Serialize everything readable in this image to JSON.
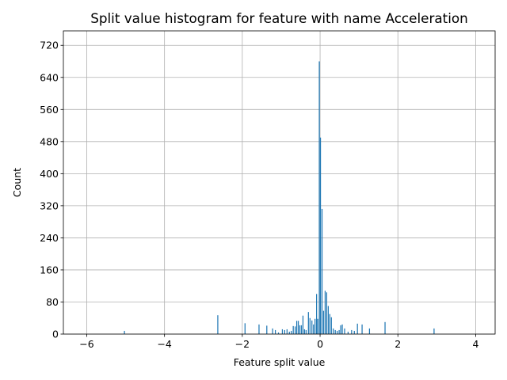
{
  "chart_data": {
    "type": "bar",
    "title": "Split value histogram for feature with name Acceleration",
    "xlabel": "Feature split value",
    "ylabel": "Count",
    "xlim": [
      -6.6,
      4.5
    ],
    "ylim": [
      0,
      756
    ],
    "xticks": [
      -6,
      -4,
      -2,
      0,
      2,
      4
    ],
    "xtick_labels": [
      "−6",
      "−4",
      "−2",
      "0",
      "2",
      "4"
    ],
    "yticks": [
      0,
      80,
      160,
      240,
      320,
      400,
      480,
      560,
      640,
      720
    ],
    "ytick_labels": [
      "0",
      "80",
      "160",
      "240",
      "320",
      "400",
      "480",
      "560",
      "640",
      "720"
    ],
    "grid": true,
    "bar_color": "#1f77b4",
    "bar_width": 0.025,
    "bars": [
      {
        "x": -5.03,
        "y": 8
      },
      {
        "x": -2.63,
        "y": 47
      },
      {
        "x": -1.93,
        "y": 27
      },
      {
        "x": -1.57,
        "y": 24
      },
      {
        "x": -1.37,
        "y": 21
      },
      {
        "x": -1.22,
        "y": 14
      },
      {
        "x": -1.15,
        "y": 10
      },
      {
        "x": -1.07,
        "y": 4
      },
      {
        "x": -0.97,
        "y": 12
      },
      {
        "x": -0.91,
        "y": 10
      },
      {
        "x": -0.85,
        "y": 12
      },
      {
        "x": -0.79,
        "y": 6
      },
      {
        "x": -0.74,
        "y": 8
      },
      {
        "x": -0.69,
        "y": 20
      },
      {
        "x": -0.64,
        "y": 19
      },
      {
        "x": -0.6,
        "y": 33
      },
      {
        "x": -0.56,
        "y": 33
      },
      {
        "x": -0.52,
        "y": 22
      },
      {
        "x": -0.48,
        "y": 22
      },
      {
        "x": -0.44,
        "y": 46
      },
      {
        "x": -0.4,
        "y": 12
      },
      {
        "x": -0.36,
        "y": 10
      },
      {
        "x": -0.3,
        "y": 55
      },
      {
        "x": -0.26,
        "y": 40
      },
      {
        "x": -0.21,
        "y": 34
      },
      {
        "x": -0.17,
        "y": 24
      },
      {
        "x": -0.13,
        "y": 38
      },
      {
        "x": -0.09,
        "y": 100
      },
      {
        "x": -0.06,
        "y": 38
      },
      {
        "x": -0.02,
        "y": 680
      },
      {
        "x": 0.01,
        "y": 490
      },
      {
        "x": 0.05,
        "y": 312
      },
      {
        "x": 0.09,
        "y": 58
      },
      {
        "x": 0.13,
        "y": 108
      },
      {
        "x": 0.17,
        "y": 104
      },
      {
        "x": 0.21,
        "y": 70
      },
      {
        "x": 0.25,
        "y": 50
      },
      {
        "x": 0.29,
        "y": 42
      },
      {
        "x": 0.34,
        "y": 14
      },
      {
        "x": 0.39,
        "y": 10
      },
      {
        "x": 0.44,
        "y": 8
      },
      {
        "x": 0.49,
        "y": 10
      },
      {
        "x": 0.53,
        "y": 22
      },
      {
        "x": 0.57,
        "y": 24
      },
      {
        "x": 0.63,
        "y": 14
      },
      {
        "x": 0.72,
        "y": 6
      },
      {
        "x": 0.81,
        "y": 10
      },
      {
        "x": 0.88,
        "y": 8
      },
      {
        "x": 0.96,
        "y": 26
      },
      {
        "x": 1.08,
        "y": 24
      },
      {
        "x": 1.27,
        "y": 14
      },
      {
        "x": 1.67,
        "y": 30
      },
      {
        "x": 2.93,
        "y": 14
      }
    ]
  }
}
